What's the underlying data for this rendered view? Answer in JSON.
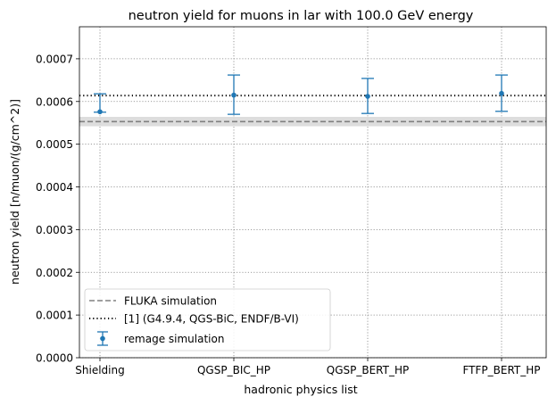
{
  "chart_data": {
    "type": "scatter",
    "title": "neutron yield for muons in lar with 100.0 GeV energy",
    "xlabel": "hadronic physics list",
    "ylabel": "neutron yield [n/muon/(g/cm^2)]",
    "categories": [
      "Shielding",
      "QGSP_BIC_HP",
      "QGSP_BERT_HP",
      "FTFP_BERT_HP"
    ],
    "ylim": [
      0,
      0.000775
    ],
    "yticks": [
      "0.0000",
      "0.0001",
      "0.0002",
      "0.0003",
      "0.0004",
      "0.0005",
      "0.0006",
      "0.0007"
    ],
    "grid": true,
    "legend_position": "lower-left",
    "series": [
      {
        "name": "remage simulation",
        "kind": "errorbar",
        "color": "#1f77b4",
        "values": [
          0.000576,
          0.000615,
          0.000612,
          0.000619
        ],
        "yerr_low": [
          0.000575,
          0.00057,
          0.000572,
          0.000577
        ],
        "yerr_high": [
          0.000618,
          0.000662,
          0.000654,
          0.000662
        ]
      }
    ],
    "reference_lines": [
      {
        "name": "FLUKA simulation",
        "style": "dashed",
        "color": "#808080",
        "value": 0.000553,
        "band": [
          0.000542,
          0.000564
        ]
      },
      {
        "name": "[1] (G4.9.4, QGS-BiC, ENDF/B-VI)",
        "style": "dotted",
        "color": "#000000",
        "value": 0.000614
      }
    ],
    "legend": [
      "FLUKA simulation",
      "[1] (G4.9.4, QGS-BiC, ENDF/B-VI)",
      "remage simulation"
    ]
  }
}
